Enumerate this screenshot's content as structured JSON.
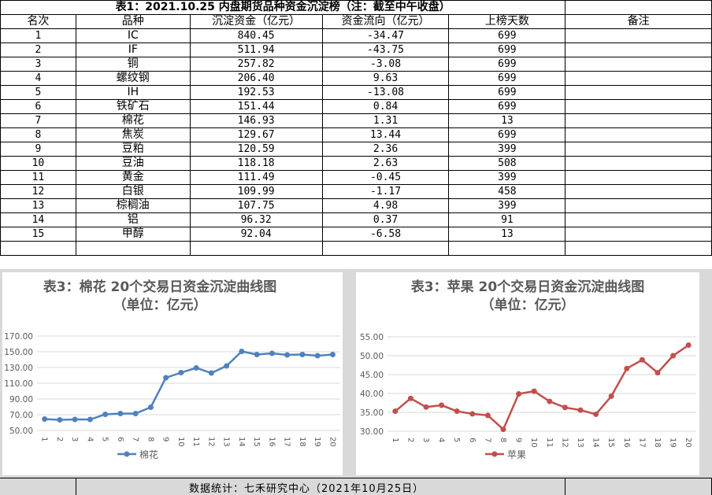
{
  "table": {
    "title": "表1：2021.10.25 内盘期货品种资金沉淀榜（注：截至中午收盘）",
    "headers": [
      "名次",
      "品种",
      "沉淀资金（亿元）",
      "资金流向（亿元）",
      "上榜天数",
      "备注"
    ],
    "rows": [
      [
        "1",
        "IC",
        "840.45",
        "-34.47",
        "699",
        ""
      ],
      [
        "2",
        "IF",
        "511.94",
        "-43.75",
        "699",
        ""
      ],
      [
        "3",
        "铜",
        "257.82",
        "-3.08",
        "699",
        ""
      ],
      [
        "4",
        "螺纹钢",
        "206.40",
        "9.63",
        "699",
        ""
      ],
      [
        "5",
        "IH",
        "192.53",
        "-13.08",
        "699",
        ""
      ],
      [
        "6",
        "铁矿石",
        "151.44",
        "0.84",
        "699",
        ""
      ],
      [
        "7",
        "棉花",
        "146.93",
        "1.31",
        "13",
        ""
      ],
      [
        "8",
        "焦炭",
        "129.67",
        "13.44",
        "699",
        ""
      ],
      [
        "9",
        "豆粕",
        "120.59",
        "2.36",
        "399",
        ""
      ],
      [
        "10",
        "豆油",
        "118.18",
        "2.63",
        "508",
        ""
      ],
      [
        "11",
        "黄金",
        "111.49",
        "-0.45",
        "399",
        ""
      ],
      [
        "12",
        "白银",
        "109.99",
        "-1.17",
        "458",
        ""
      ],
      [
        "13",
        "棕榈油",
        "107.75",
        "4.98",
        "399",
        ""
      ],
      [
        "14",
        "铝",
        "96.32",
        "0.37",
        "91",
        ""
      ],
      [
        "15",
        "甲醇",
        "92.04",
        "-6.58",
        "13",
        ""
      ]
    ]
  },
  "footer_note": "数据统计：七禾研究中心（2021年10月25日）",
  "chart_data": [
    {
      "type": "line",
      "title": "表3：棉花 20个交易日资金沉淀曲线图",
      "subtitle": "（单位：亿元）",
      "x": [
        "1",
        "2",
        "3",
        "4",
        "5",
        "6",
        "7",
        "8",
        "9",
        "10",
        "11",
        "12",
        "13",
        "14",
        "15",
        "16",
        "17",
        "18",
        "19",
        "20"
      ],
      "series": [
        {
          "name": "棉花",
          "color": "#4f81bd",
          "values": [
            64.5,
            63.5,
            64.0,
            64.0,
            70.5,
            71.5,
            71.5,
            79.5,
            117.0,
            123.5,
            129.5,
            123.0,
            132.0,
            150.5,
            146.5,
            148.0,
            146.0,
            146.5,
            145.0,
            146.5
          ]
        }
      ],
      "yticks": [
        "50.00",
        "70.00",
        "90.00",
        "110.00",
        "130.00",
        "150.00",
        "170.00"
      ],
      "ylim": [
        50,
        170
      ],
      "legend": "bottom"
    },
    {
      "type": "line",
      "title": "表3：苹果 20个交易日资金沉淀曲线图",
      "subtitle": "（单位：亿元）",
      "x": [
        "1",
        "2",
        "3",
        "4",
        "5",
        "6",
        "7",
        "8",
        "9",
        "10",
        "11",
        "12",
        "13",
        "14",
        "15",
        "16",
        "17",
        "18",
        "19",
        "20"
      ],
      "series": [
        {
          "name": "苹果",
          "color": "#c0504d",
          "values": [
            35.3,
            38.7,
            36.4,
            36.9,
            35.3,
            34.6,
            34.2,
            30.5,
            39.9,
            40.6,
            37.9,
            36.3,
            35.6,
            34.5,
            39.3,
            46.6,
            48.9,
            45.5,
            50.0,
            52.8
          ]
        }
      ],
      "yticks": [
        "30.00",
        "35.00",
        "40.00",
        "45.00",
        "50.00",
        "55.00"
      ],
      "ylim": [
        30,
        55
      ],
      "legend": "bottom"
    }
  ]
}
